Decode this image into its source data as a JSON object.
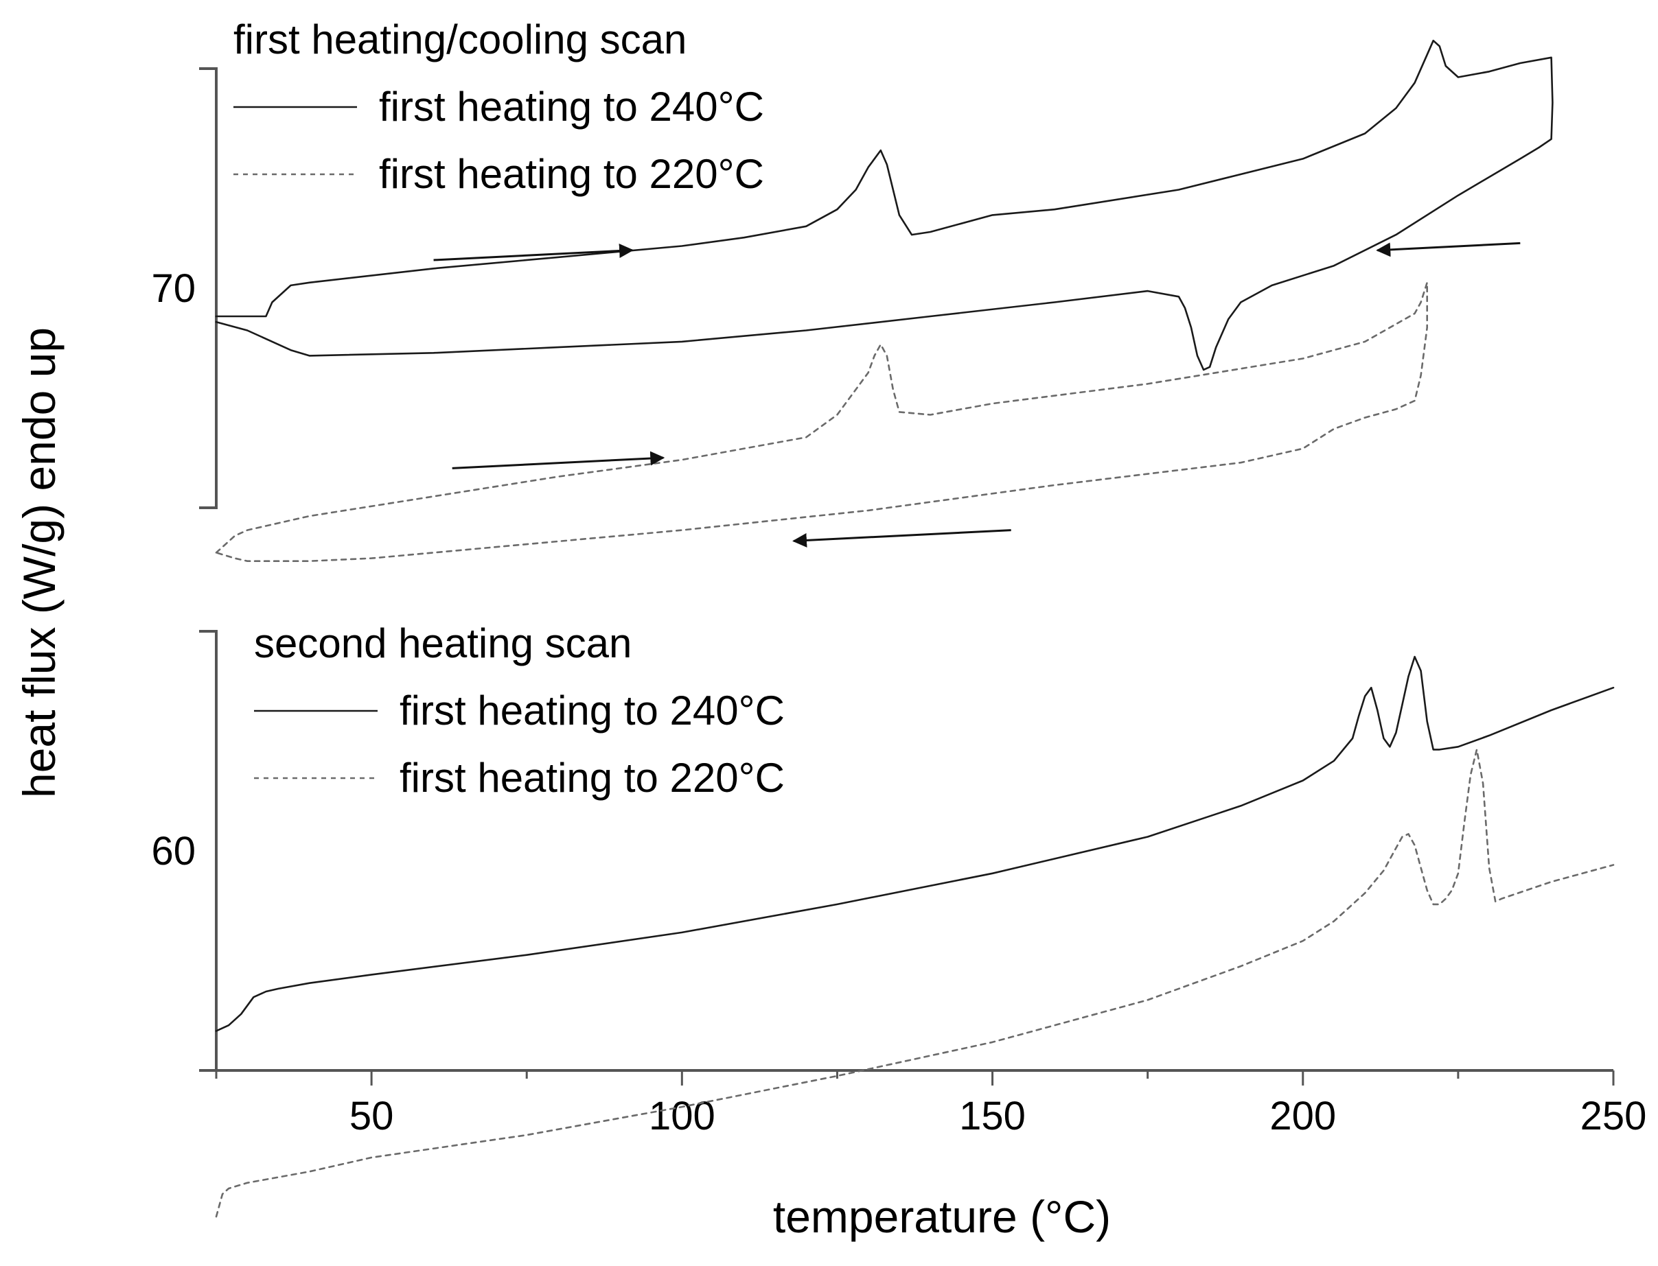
{
  "chart_data": {
    "type": "line",
    "xlabel": "temperature (°C)",
    "ylabel": "heat flux (W/g) endo up",
    "xlim": [
      25,
      250
    ],
    "x_ticks": [
      50,
      100,
      150,
      200,
      250
    ],
    "y_ticks": [
      60,
      70
    ],
    "grid": false,
    "colors": {
      "solid": "#1a1a1a",
      "dashed": "#6a6a6a"
    },
    "panels": [
      {
        "legend_title": "first heating/cooling scan",
        "legend_position": "top-left",
        "legend_entries": [
          {
            "label": "first heating to 240°C",
            "style": "solid"
          },
          {
            "label": "first heating to 220°C",
            "style": "dashed"
          }
        ],
        "series": [
          {
            "name": "first heating to 240°C",
            "style": "solid",
            "x": [
              25,
              33,
              34,
              37,
              40,
              60,
              80,
              100,
              110,
              120,
              125,
              128,
              130,
              132,
              133,
              135,
              137,
              140,
              150,
              160,
              180,
              200,
              210,
              215,
              218,
              220,
              221,
              222,
              223,
              225,
              230,
              235,
              240,
              240.2,
              240,
              238,
              235,
              225,
              215,
              205,
              195,
              190,
              188,
              186,
              185,
              184,
              183,
              182,
              181,
              180,
              175,
              160,
              140,
              120,
              100,
              80,
              60,
              40,
              37,
              30,
              25
            ],
            "y": [
              69.5,
              69.5,
              69.75,
              70.05,
              70.1,
              70.35,
              70.55,
              70.75,
              70.9,
              71.1,
              71.4,
              71.75,
              72.15,
              72.45,
              72.2,
              71.3,
              70.95,
              71.0,
              71.3,
              71.4,
              71.75,
              72.3,
              72.75,
              73.2,
              73.65,
              74.15,
              74.4,
              74.3,
              73.95,
              73.75,
              73.85,
              74.0,
              74.1,
              73.3,
              72.65,
              72.5,
              72.3,
              71.65,
              70.95,
              70.4,
              70.05,
              69.75,
              69.45,
              68.95,
              68.6,
              68.55,
              68.8,
              69.3,
              69.65,
              69.85,
              69.95,
              69.75,
              69.5,
              69.25,
              69.05,
              68.95,
              68.85,
              68.8,
              68.9,
              69.25,
              69.4
            ]
          },
          {
            "name": "first heating to 220°C",
            "style": "dashed",
            "x": [
              25,
              28,
              30,
              40,
              60,
              80,
              100,
              120,
              125,
              128,
              130,
              131,
              132,
              133,
              134,
              135,
              140,
              150,
              175,
              200,
              210,
              218,
              219,
              220,
              220,
              219,
              218,
              215,
              210,
              205,
              200,
              190,
              160,
              130,
              100,
              70,
              50,
              40,
              30,
              28,
              25
            ],
            "y": [
              65.3,
              65.6,
              65.7,
              65.95,
              66.3,
              66.65,
              66.95,
              67.35,
              67.75,
              68.2,
              68.5,
              68.8,
              69.0,
              68.8,
              68.2,
              67.8,
              67.75,
              67.95,
              68.3,
              68.75,
              69.05,
              69.55,
              69.75,
              70.1,
              69.3,
              68.45,
              68.0,
              67.85,
              67.7,
              67.5,
              67.15,
              66.9,
              66.5,
              66.05,
              65.7,
              65.4,
              65.2,
              65.15,
              65.15,
              65.2,
              65.3
            ]
          }
        ]
      },
      {
        "legend_title": "second heating scan",
        "legend_position": "top-left",
        "legend_entries": [
          {
            "label": "first heating to 240°C",
            "style": "solid"
          },
          {
            "label": "first heating to 220°C",
            "style": "dashed"
          }
        ],
        "series": [
          {
            "name": "first heating to 240°C",
            "style": "solid",
            "x": [
              25,
              27,
              29,
              31,
              33,
              35,
              40,
              50,
              75,
              100,
              125,
              150,
              175,
              190,
              200,
              205,
              208,
              209,
              210,
              211,
              212,
              213,
              214,
              215,
              216,
              217,
              218,
              219,
              220,
              221,
              222,
              225,
              230,
              240,
              250
            ],
            "y": [
              56.8,
              56.9,
              57.1,
              57.4,
              57.5,
              57.55,
              57.65,
              57.8,
              58.15,
              58.55,
              59.05,
              59.6,
              60.25,
              60.8,
              61.25,
              61.6,
              62.0,
              62.4,
              62.75,
              62.9,
              62.5,
              62.0,
              61.85,
              62.1,
              62.6,
              63.1,
              63.45,
              63.2,
              62.3,
              61.8,
              61.8,
              61.85,
              62.05,
              62.5,
              62.9
            ]
          },
          {
            "name": "first heating to 220°C",
            "style": "dashed",
            "x": [
              25,
              26,
              27,
              30,
              40,
              50,
              75,
              100,
              125,
              150,
              175,
              190,
              200,
              205,
              210,
              213,
              215,
              216,
              217,
              218,
              219,
              220,
              221,
              222,
              223,
              224,
              225,
              226,
              227,
              228,
              229,
              230,
              231,
              232,
              240,
              250
            ],
            "y": [
              53.5,
              53.9,
              54.0,
              54.1,
              54.3,
              54.55,
              54.95,
              55.45,
              56.0,
              56.6,
              57.35,
              57.95,
              58.4,
              58.75,
              59.25,
              59.65,
              60.05,
              60.25,
              60.3,
              60.1,
              59.7,
              59.3,
              59.05,
              59.05,
              59.15,
              59.3,
              59.6,
              60.5,
              61.35,
              61.8,
              61.2,
              59.7,
              59.1,
              59.15,
              59.45,
              59.75
            ]
          }
        ]
      }
    ]
  }
}
